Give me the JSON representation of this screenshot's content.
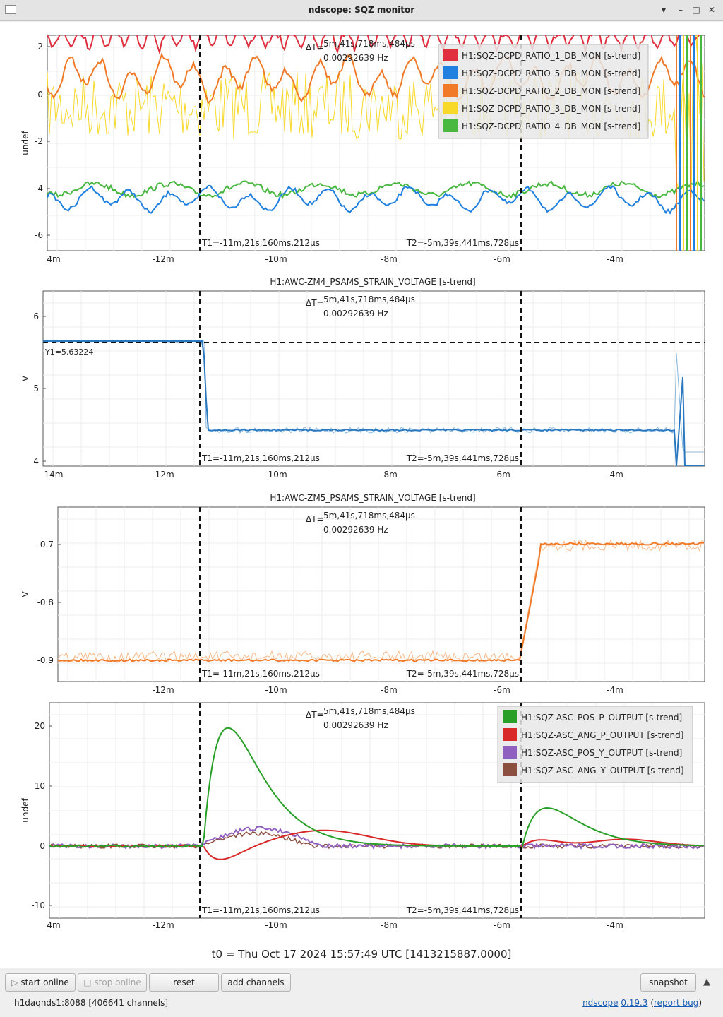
{
  "window": {
    "title": "ndscope: SQZ monitor"
  },
  "cursors": {
    "t1": "T1=-11m,21s,160ms,212µs",
    "t2": "T2=-5m,39s,441ms,728µs",
    "dt_label": "ΔT=",
    "dt": "5m,41s,718ms,484µs",
    "freq": "0.00292639 Hz"
  },
  "plots": [
    {
      "title": "",
      "ylabel": "undef",
      "yticks": [
        "2",
        "0",
        "-2",
        "-4",
        "-6"
      ],
      "xticks": [
        "4m",
        "-12m",
        "-10m",
        "-8m",
        "-6m",
        "-4m"
      ],
      "legend": [
        {
          "label": "H1:SQZ-DCPD_RATIO_1_DB_MON [s-trend]",
          "color": "#e03040"
        },
        {
          "label": "H1:SQZ-DCPD_RATIO_5_DB_MON [s-trend]",
          "color": "#2080e0"
        },
        {
          "label": "H1:SQZ-DCPD_RATIO_2_DB_MON [s-trend]",
          "color": "#f07a28"
        },
        {
          "label": "H1:SQZ-DCPD_RATIO_3_DB_MON [s-trend]",
          "color": "#f8d828"
        },
        {
          "label": "H1:SQZ-DCPD_RATIO_4_DB_MON [s-trend]",
          "color": "#48b840"
        }
      ]
    },
    {
      "title": "H1:AWC-ZM4_PSAMS_STRAIN_VOLTAGE [s-trend]",
      "ylabel": "V",
      "yticks": [
        "6",
        "5",
        "4"
      ],
      "xticks": [
        "14m",
        "-12m",
        "-10m",
        "-8m",
        "-6m",
        "-4m"
      ],
      "y1": "Y1=5.63224"
    },
    {
      "title": "H1:AWC-ZM5_PSAMS_STRAIN_VOLTAGE [s-trend]",
      "ylabel": "V",
      "yticks": [
        "-0.7",
        "-0.8",
        "-0.9"
      ],
      "xticks": [
        "-12m",
        "-10m",
        "-8m",
        "-6m",
        "-4m"
      ]
    },
    {
      "title": "",
      "ylabel": "undef",
      "yticks": [
        "20",
        "10",
        "0",
        "-10"
      ],
      "xticks": [
        "4m",
        "-12m",
        "-10m",
        "-8m",
        "-6m",
        "-4m"
      ],
      "legend": [
        {
          "label": "H1:SQZ-ASC_POS_P_OUTPUT [s-trend]",
          "color": "#28a028"
        },
        {
          "label": "H1:SQZ-ASC_ANG_P_OUTPUT [s-trend]",
          "color": "#d82828"
        },
        {
          "label": "H1:SQZ-ASC_POS_Y_OUTPUT [s-trend]",
          "color": "#9060c0"
        },
        {
          "label": "H1:SQZ-ASC_ANG_Y_OUTPUT [s-trend]",
          "color": "#8c5040"
        }
      ]
    }
  ],
  "t0": "t0 = Thu Oct 17 2024 15:57:49 UTC [1413215887.0000]",
  "toolbar": {
    "start": "start online",
    "stop": "stop online",
    "reset": "reset",
    "add": "add channels",
    "snapshot": "snapshot"
  },
  "status": {
    "server": "h1daqnds1:8088  [406641 channels]",
    "app": "ndscope",
    "version": "0.19.3",
    "bug": "report bug"
  }
}
